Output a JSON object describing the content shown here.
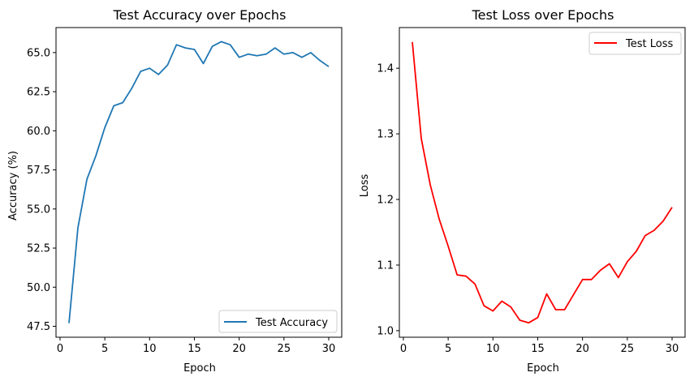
{
  "chart_data": [
    {
      "type": "line",
      "title": "Test Accuracy over Epochs",
      "xlabel": "Epoch",
      "ylabel": "Accuracy (%)",
      "xlim": [
        -0.45,
        31.45
      ],
      "ylim": [
        46.8,
        66.6
      ],
      "xticks": [
        0,
        5,
        10,
        15,
        20,
        25,
        30
      ],
      "yticks": [
        47.5,
        50.0,
        52.5,
        55.0,
        57.5,
        60.0,
        62.5,
        65.0
      ],
      "ytick_labels": [
        "47.5",
        "50.0",
        "52.5",
        "55.0",
        "57.5",
        "60.0",
        "62.5",
        "65.0"
      ],
      "legend_position": "lower-right",
      "grid": false,
      "series": [
        {
          "name": "Test Accuracy",
          "color": "#1f77b4",
          "x": [
            1,
            2,
            3,
            4,
            5,
            6,
            7,
            8,
            9,
            10,
            11,
            12,
            13,
            14,
            15,
            16,
            17,
            18,
            19,
            20,
            21,
            22,
            23,
            24,
            25,
            26,
            27,
            28,
            29,
            30
          ],
          "values": [
            47.7,
            53.8,
            56.9,
            58.4,
            60.2,
            61.6,
            61.8,
            62.7,
            63.8,
            64.0,
            63.6,
            64.2,
            65.5,
            65.3,
            65.2,
            64.3,
            65.4,
            65.7,
            65.5,
            64.7,
            64.9,
            64.8,
            64.9,
            65.3,
            64.9,
            65.0,
            64.7,
            65.0,
            64.5,
            64.1
          ]
        }
      ]
    },
    {
      "type": "line",
      "title": "Test Loss over Epochs",
      "xlabel": "Epoch",
      "ylabel": "Loss",
      "xlim": [
        -0.45,
        31.45
      ],
      "ylim": [
        0.99,
        1.462
      ],
      "xticks": [
        0,
        5,
        10,
        15,
        20,
        25,
        30
      ],
      "yticks": [
        1.0,
        1.1,
        1.2,
        1.3,
        1.4
      ],
      "ytick_labels": [
        "1.0",
        "1.1",
        "1.2",
        "1.3",
        "1.4"
      ],
      "legend_position": "upper-right",
      "grid": false,
      "series": [
        {
          "name": "Test Loss",
          "color": "#ff0000",
          "x": [
            1,
            2,
            3,
            4,
            5,
            6,
            7,
            8,
            9,
            10,
            11,
            12,
            13,
            14,
            15,
            16,
            17,
            18,
            19,
            20,
            21,
            22,
            23,
            24,
            25,
            26,
            27,
            28,
            29,
            30
          ],
          "values": [
            1.44,
            1.293,
            1.222,
            1.17,
            1.129,
            1.085,
            1.083,
            1.071,
            1.038,
            1.03,
            1.045,
            1.036,
            1.016,
            1.012,
            1.02,
            1.056,
            1.032,
            1.032,
            1.055,
            1.078,
            1.078,
            1.092,
            1.102,
            1.081,
            1.105,
            1.121,
            1.145,
            1.153,
            1.167,
            1.188
          ]
        }
      ]
    }
  ]
}
